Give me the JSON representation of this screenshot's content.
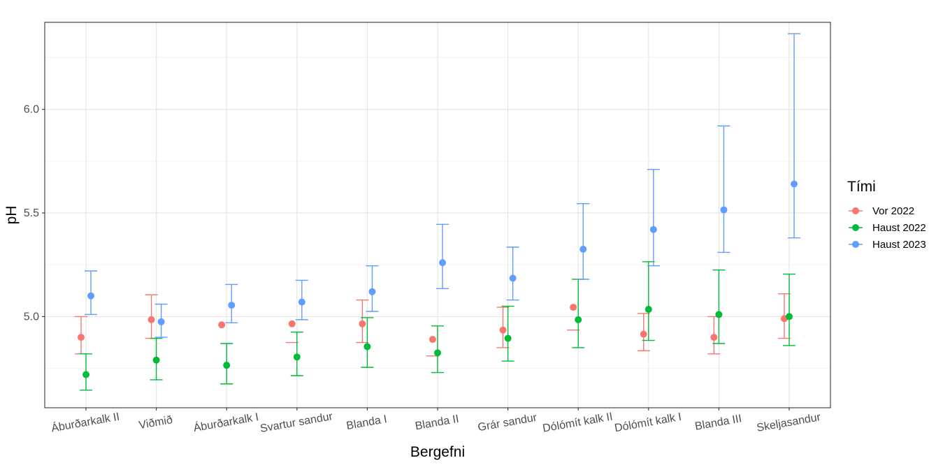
{
  "chart_data": {
    "type": "scatter",
    "xlabel": "Bergefni",
    "ylabel": "pH",
    "ylim": [
      4.56,
      6.42
    ],
    "yticks": [
      5.0,
      5.5,
      6.0
    ],
    "ytick_labels": [
      "5.0",
      "5.5",
      "6.0"
    ],
    "grid": true,
    "legend_title": "Tími",
    "legend_position": "right",
    "categories": [
      "Áburðarkalk II",
      "Viðmið",
      "Áburðarkalk I",
      "Svartur sandur",
      "Blanda I",
      "Blanda II",
      "Grár sandur",
      "Dólómít kalk II",
      "Dólómít kalk I",
      "Blanda III",
      "Skeljasandur"
    ],
    "series": [
      {
        "name": "Vor 2022",
        "color": "#f8766d",
        "offset": -0.07,
        "mean": [
          4.9,
          4.985,
          4.96,
          4.965,
          4.965,
          4.89,
          4.935,
          5.045,
          4.915,
          4.9,
          4.99
        ],
        "lower": [
          4.82,
          4.895,
          null,
          4.875,
          4.875,
          4.81,
          4.85,
          4.935,
          4.835,
          4.82,
          4.895
        ],
        "upper": [
          5.0,
          5.105,
          null,
          null,
          5.08,
          null,
          5.045,
          null,
          5.015,
          5.0,
          5.11
        ]
      },
      {
        "name": "Haust 2022",
        "color": "#00ba38",
        "offset": 0.0,
        "mean": [
          4.72,
          4.79,
          4.765,
          4.805,
          4.855,
          4.825,
          4.895,
          4.985,
          5.035,
          5.01,
          5.0
        ],
        "lower": [
          4.645,
          4.695,
          4.675,
          4.715,
          4.755,
          4.73,
          4.785,
          4.85,
          4.885,
          4.87,
          4.86
        ],
        "upper": [
          4.82,
          4.895,
          4.87,
          4.925,
          4.995,
          4.955,
          5.05,
          5.18,
          5.265,
          5.225,
          5.205
        ]
      },
      {
        "name": "Haust 2023",
        "color": "#619cff",
        "offset": 0.07,
        "mean": [
          5.1,
          4.975,
          5.055,
          5.07,
          5.12,
          5.26,
          5.185,
          5.325,
          5.42,
          5.515,
          5.64
        ],
        "lower": [
          5.01,
          4.9,
          4.97,
          4.985,
          5.025,
          5.135,
          5.08,
          5.18,
          5.245,
          5.31,
          5.38
        ],
        "upper": [
          5.22,
          5.06,
          5.155,
          5.175,
          5.245,
          5.445,
          5.335,
          5.545,
          5.71,
          5.92,
          6.365
        ]
      }
    ]
  }
}
